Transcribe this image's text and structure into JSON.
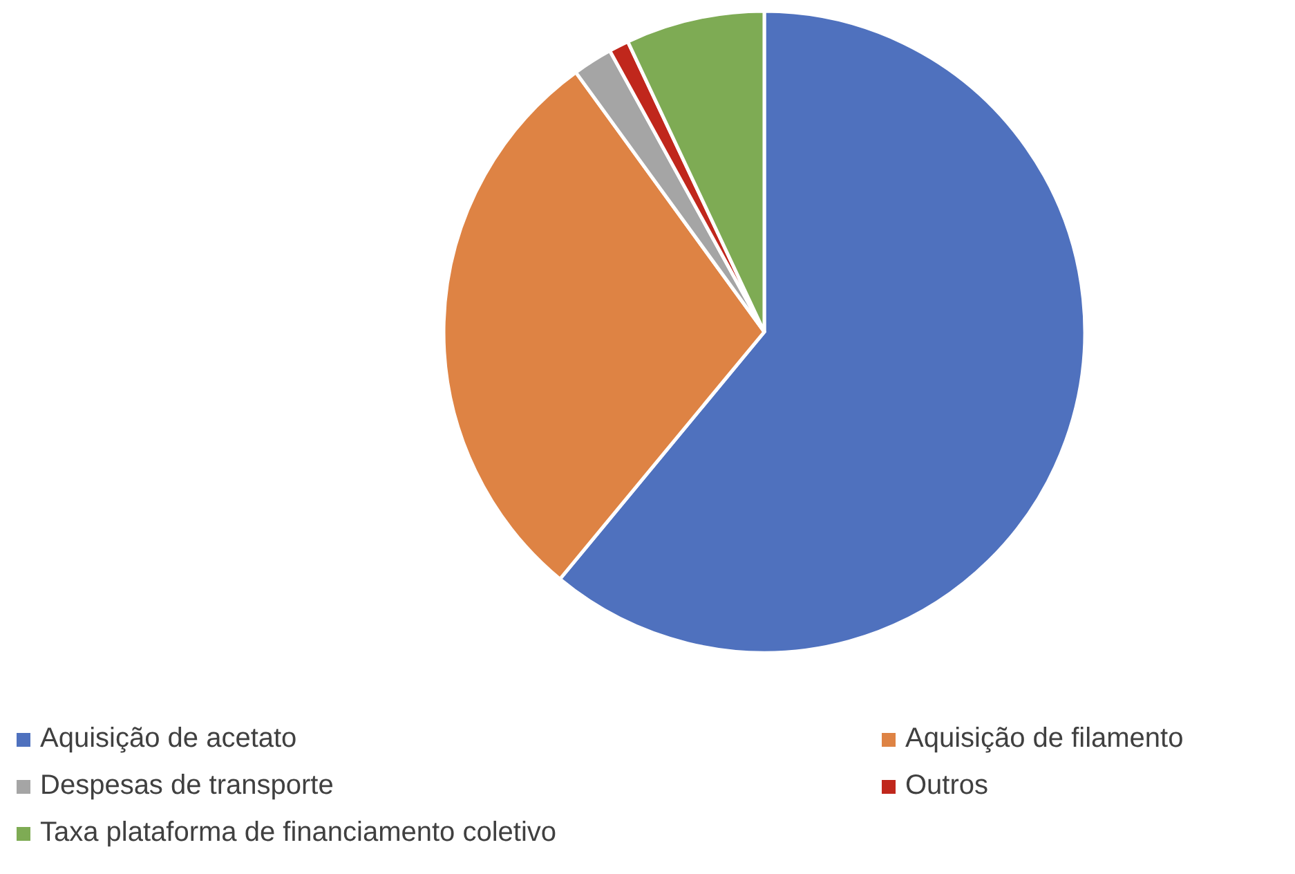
{
  "chart_data": {
    "type": "pie",
    "categories": [
      "Aquisição de acetato",
      "Aquisição de filamento",
      "Despesas de transporte",
      "Outros",
      "Taxa plataforma de financiamento coletivo"
    ],
    "values": [
      61,
      29,
      2,
      1,
      7
    ],
    "colors": [
      "#4f71be",
      "#de8344",
      "#a5a5a5",
      "#c0271c",
      "#7eab54"
    ],
    "legend": "bottom"
  }
}
